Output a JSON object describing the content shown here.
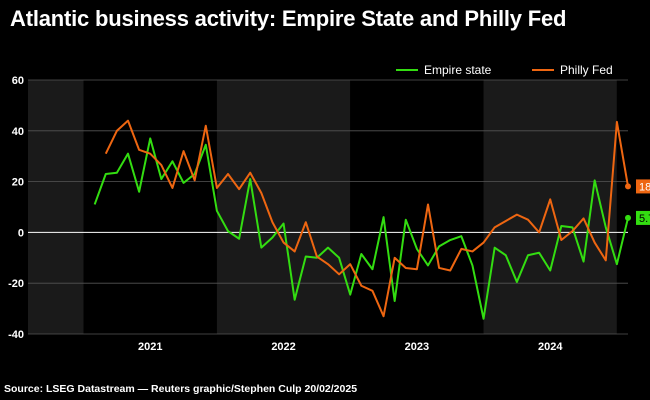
{
  "title": "Atlantic business activity: Empire State and Philly Fed",
  "source": "Source: LSEG Datastream — Reuters graphic/Stephen Culp 20/02/2025",
  "chart_data": {
    "type": "line",
    "title": "Atlantic business activity: Empire State and Philly Fed",
    "xlabel": "",
    "ylabel": "",
    "ylim": [
      -40,
      60
    ],
    "yticks": [
      60,
      40,
      20,
      0,
      -20,
      -40
    ],
    "x_start": "2020-08",
    "x_end": "2025-02",
    "year_labels": [
      "2021",
      "2022",
      "2023",
      "2024"
    ],
    "grid": true,
    "legend_position": "top-right",
    "colors": {
      "empire": "#33dd11",
      "philly": "#ee6611",
      "background": "#000000",
      "plot_band": "#1a1a1a"
    },
    "series": [
      {
        "name": "Empire state",
        "color": "#33dd11",
        "end_label": "5.7",
        "values": [
          11,
          23,
          23.5,
          31,
          16,
          37,
          21,
          28,
          19.5,
          23,
          34.5,
          8.5,
          0.5,
          -2.5,
          21,
          -6,
          -2,
          3.5,
          -26.5,
          -9.5,
          -10,
          -6,
          -10,
          -24.5,
          -8.5,
          -14.5,
          6,
          -27,
          5,
          -6.5,
          -13,
          -5.5,
          -3,
          -1.5,
          -13,
          -34,
          -6,
          -9,
          -19.5,
          -9,
          -8,
          -15,
          2.5,
          2,
          -11.5,
          20.5,
          2,
          -12.5,
          5.7
        ]
      },
      {
        "name": "Philly Fed",
        "color": "#ee6611",
        "end_label": "18.1",
        "values": [
          31,
          40,
          44,
          32.5,
          31,
          26.5,
          17.5,
          32,
          20.5,
          42,
          17.5,
          23,
          17,
          23.5,
          15.5,
          4,
          -4,
          -7.5,
          4,
          -9.5,
          -12.5,
          -16.5,
          -12.5,
          -21,
          -23,
          -33,
          -10,
          -14,
          -14.5,
          11,
          -14,
          -15,
          -6.5,
          -7.5,
          -4,
          2,
          4.5,
          7,
          5,
          0,
          13,
          -3,
          0.5,
          5.5,
          -4,
          -11,
          43.5,
          18.1
        ]
      }
    ]
  }
}
